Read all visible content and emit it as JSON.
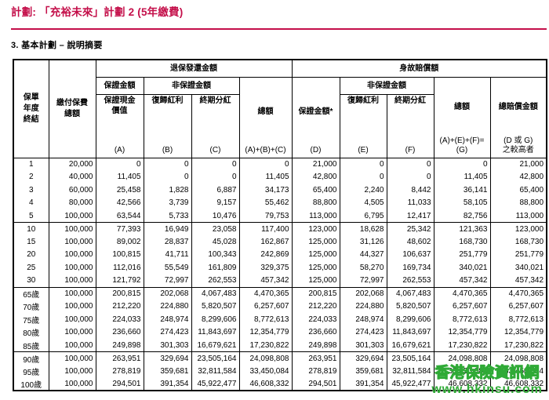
{
  "theme": {
    "accent": "#c40f4a",
    "watermark_orange": "#ff7a00",
    "watermark_green": "#2faa36"
  },
  "doc": {
    "title": "計劃: 「充裕未來」計劃 2 (5年繳費)",
    "section_heading": "3. 基本計劃 – 說明摘要"
  },
  "watermark": {
    "line1": "香港保險資訊網",
    "line2": "www.hkinsu.com"
  },
  "table": {
    "header": {
      "policy_year": "保單\n年度\n終結",
      "total_premiums": "繳付保費\n總額",
      "surrender_group": "退保發還金額",
      "death_group": "身故賠償額",
      "guaranteed": "保證金額",
      "guaranteed_star": "保證金額*",
      "non_guaranteed": "非保證金額",
      "guaranteed_cash_value": "保證現金\n價值",
      "reversionary_bonus": "復歸紅利",
      "terminal_dividend": "終期分紅",
      "total": "總額",
      "total_benefit": "總賠償金額",
      "letters": {
        "a": "(A)",
        "b": "(B)",
        "c": "(C)",
        "abc": "(A)+(B)+(C)",
        "d": "(D)",
        "e": "(E)",
        "f": "(F)",
        "aefg": "(A)+(E)+(F)=\n(G)",
        "dg": "(D 或 G)\n之較高者"
      }
    },
    "groups": [
      {
        "rows": [
          [
            "1",
            "20,000",
            "0",
            "0",
            "0",
            "0",
            "21,000",
            "0",
            "0",
            "0",
            "21,000"
          ],
          [
            "2",
            "40,000",
            "11,405",
            "0",
            "0",
            "11,405",
            "42,800",
            "0",
            "0",
            "11,405",
            "42,800"
          ],
          [
            "3",
            "60,000",
            "25,458",
            "1,828",
            "6,887",
            "34,173",
            "65,400",
            "2,240",
            "8,442",
            "36,141",
            "65,400"
          ],
          [
            "4",
            "80,000",
            "42,566",
            "3,739",
            "9,157",
            "55,462",
            "88,800",
            "4,505",
            "11,033",
            "58,105",
            "88,800"
          ],
          [
            "5",
            "100,000",
            "63,544",
            "5,733",
            "10,476",
            "79,753",
            "113,000",
            "6,795",
            "12,417",
            "82,756",
            "113,000"
          ]
        ]
      },
      {
        "rows": [
          [
            "10",
            "100,000",
            "77,393",
            "16,949",
            "23,058",
            "117,400",
            "123,000",
            "18,628",
            "25,342",
            "121,363",
            "123,000"
          ],
          [
            "15",
            "100,000",
            "89,002",
            "28,837",
            "45,028",
            "162,867",
            "125,000",
            "31,126",
            "48,602",
            "168,730",
            "168,730"
          ],
          [
            "20",
            "100,000",
            "100,815",
            "41,711",
            "100,343",
            "242,869",
            "125,000",
            "44,327",
            "106,637",
            "251,779",
            "251,779"
          ],
          [
            "25",
            "100,000",
            "112,016",
            "55,549",
            "161,809",
            "329,375",
            "125,000",
            "58,270",
            "169,734",
            "340,021",
            "340,021"
          ],
          [
            "30",
            "100,000",
            "121,792",
            "72,997",
            "262,553",
            "457,342",
            "125,000",
            "72,997",
            "262,553",
            "457,342",
            "457,342"
          ]
        ]
      },
      {
        "rows": [
          [
            "65歲",
            "100,000",
            "200,815",
            "202,068",
            "4,067,483",
            "4,470,365",
            "200,815",
            "202,068",
            "4,067,483",
            "4,470,365",
            "4,470,365"
          ],
          [
            "70歲",
            "100,000",
            "212,220",
            "224,880",
            "5,820,507",
            "6,257,607",
            "212,220",
            "224,880",
            "5,820,507",
            "6,257,607",
            "6,257,607"
          ],
          [
            "75歲",
            "100,000",
            "224,033",
            "248,974",
            "8,299,606",
            "8,772,613",
            "224,033",
            "248,974",
            "8,299,606",
            "8,772,613",
            "8,772,613"
          ],
          [
            "80歲",
            "100,000",
            "236,660",
            "274,423",
            "11,843,697",
            "12,354,779",
            "236,660",
            "274,423",
            "11,843,697",
            "12,354,779",
            "12,354,779"
          ],
          [
            "85歲",
            "100,000",
            "249,898",
            "301,303",
            "16,679,621",
            "17,230,822",
            "249,898",
            "301,303",
            "16,679,621",
            "17,230,822",
            "17,230,822"
          ]
        ]
      },
      {
        "rows": [
          [
            "90歲",
            "100,000",
            "263,951",
            "329,694",
            "23,505,164",
            "24,098,808",
            "263,951",
            "329,694",
            "23,505,164",
            "24,098,808",
            "24,098,808"
          ],
          [
            "95歲",
            "100,000",
            "278,819",
            "359,681",
            "32,811,584",
            "33,450,084",
            "278,819",
            "359,681",
            "32,811,584",
            "33,450,084",
            "33,450,084"
          ],
          [
            "100歲",
            "100,000",
            "294,501",
            "391,354",
            "45,922,477",
            "46,608,332",
            "294,501",
            "391,354",
            "45,922,477",
            "46,608,332",
            "46,608,332"
          ]
        ]
      }
    ]
  }
}
